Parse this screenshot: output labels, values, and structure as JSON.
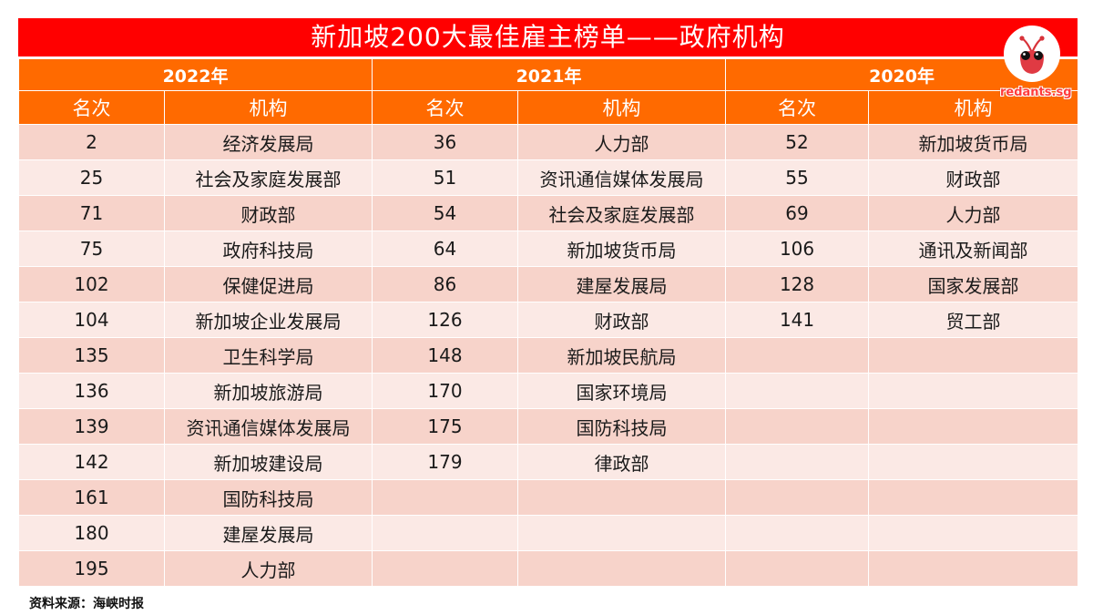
{
  "title": "新加坡200大最佳雇主榜单——政府机构",
  "years": [
    "2022年",
    "2021年",
    "2020年"
  ],
  "column_headers": {
    "rank": "名次",
    "org": "机构"
  },
  "rows": [
    {
      "r2022": "2",
      "o2022": "经济发展局",
      "r2021": "36",
      "o2021": "人力部",
      "r2020": "52",
      "o2020": "新加坡货币局"
    },
    {
      "r2022": "25",
      "o2022": "社会及家庭发展部",
      "r2021": "51",
      "o2021": "资讯通信媒体发展局",
      "r2020": "55",
      "o2020": "财政部"
    },
    {
      "r2022": "71",
      "o2022": "财政部",
      "r2021": "54",
      "o2021": "社会及家庭发展部",
      "r2020": "69",
      "o2020": "人力部"
    },
    {
      "r2022": "75",
      "o2022": "政府科技局",
      "r2021": "64",
      "o2021": "新加坡货币局",
      "r2020": "106",
      "o2020": "通讯及新闻部"
    },
    {
      "r2022": "102",
      "o2022": "保健促进局",
      "r2021": "86",
      "o2021": "建屋发展局",
      "r2020": "128",
      "o2020": "国家发展部"
    },
    {
      "r2022": "104",
      "o2022": "新加坡企业发展局",
      "r2021": "126",
      "o2021": "财政部",
      "r2020": "141",
      "o2020": "贸工部"
    },
    {
      "r2022": "135",
      "o2022": "卫生科学局",
      "r2021": "148",
      "o2021": "新加坡民航局",
      "r2020": "",
      "o2020": ""
    },
    {
      "r2022": "136",
      "o2022": "新加坡旅游局",
      "r2021": "170",
      "o2021": "国家环境局",
      "r2020": "",
      "o2020": ""
    },
    {
      "r2022": "139",
      "o2022": "资讯通信媒体发展局",
      "r2021": "175",
      "o2021": "国防科技局",
      "r2020": "",
      "o2020": ""
    },
    {
      "r2022": "142",
      "o2022": "新加坡建设局",
      "r2021": "179",
      "o2021": "律政部",
      "r2020": "",
      "o2020": ""
    },
    {
      "r2022": "161",
      "o2022": "国防科技局",
      "r2021": "",
      "o2021": "",
      "r2020": "",
      "o2020": ""
    },
    {
      "r2022": "180",
      "o2022": "建屋发展局",
      "r2021": "",
      "o2021": "",
      "r2020": "",
      "o2020": ""
    },
    {
      "r2022": "195",
      "o2022": "人力部",
      "r2021": "",
      "o2021": "",
      "r2020": "",
      "o2020": ""
    }
  ],
  "source": "资料来源：海峡时报",
  "logo": {
    "text": "redants.sg",
    "icon": "red-ant-icon"
  },
  "colors": {
    "title_bg": "#ff0000",
    "header_bg": "#ff6a00",
    "row_dark": "#f7d3ca",
    "row_light": "#fbe9e5"
  }
}
